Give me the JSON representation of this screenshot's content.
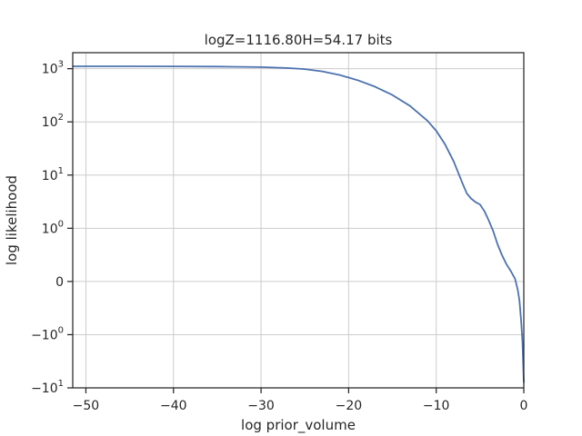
{
  "chart_data": {
    "type": "line",
    "title": "logZ=1116.80H=54.17 bits",
    "xlabel": "log prior_volume",
    "ylabel": "log likelihood",
    "yscale": "symlog",
    "xlim": [
      -51.5,
      0
    ],
    "ylim": [
      -10,
      2000
    ],
    "grid": true,
    "legend": "none",
    "x_ticks": [
      {
        "value": -50,
        "label": "−50"
      },
      {
        "value": -40,
        "label": "−40"
      },
      {
        "value": -30,
        "label": "−30"
      },
      {
        "value": -20,
        "label": "−20"
      },
      {
        "value": -10,
        "label": "−10"
      },
      {
        "value": 0,
        "label": "0"
      }
    ],
    "y_ticks": [
      {
        "value": -10,
        "base": "−10",
        "exp": "1"
      },
      {
        "value": -1,
        "base": "−10",
        "exp": "0"
      },
      {
        "value": 0,
        "base": "0",
        "exp": ""
      },
      {
        "value": 1,
        "base": "10",
        "exp": "0"
      },
      {
        "value": 10,
        "base": "10",
        "exp": "1"
      },
      {
        "value": 100,
        "base": "10",
        "exp": "2"
      },
      {
        "value": 1000,
        "base": "10",
        "exp": "3"
      }
    ],
    "series": [
      {
        "color": "#4c72b0",
        "x": [
          -51.5,
          -45,
          -40,
          -35,
          -30,
          -27,
          -25,
          -23,
          -21,
          -19,
          -17,
          -15,
          -13,
          -11,
          -10,
          -9,
          -8,
          -7,
          -6.5,
          -6,
          -5.5,
          -5,
          -4.5,
          -4,
          -3.5,
          -3,
          -2.5,
          -2,
          -1.5,
          -1,
          -0.7,
          -0.5,
          -0.3,
          -0.15,
          0
        ],
        "y": [
          1110,
          1110,
          1105,
          1095,
          1070,
          1030,
          980,
          890,
          760,
          610,
          460,
          320,
          200,
          105,
          68,
          38,
          18,
          7,
          4.5,
          3.6,
          3.1,
          2.8,
          2.1,
          1.4,
          0.95,
          0.7,
          0.5,
          0.33,
          0.2,
          0.05,
          -0.15,
          -0.35,
          -0.75,
          -1.4,
          -8
        ]
      }
    ]
  }
}
